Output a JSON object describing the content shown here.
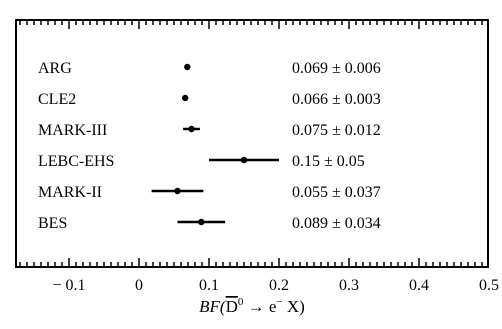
{
  "chart_data": {
    "type": "scatter",
    "title": "",
    "xlabel_main": "BF(",
    "xlabel_dbar": "D",
    "xlabel_dsup": "0",
    "xlabel_arrow": " → e",
    "xlabel_esup": "−",
    "xlabel_tail": " X)",
    "xlim": [
      -0.18,
      0.5
    ],
    "xticks": [
      -0.1,
      0,
      0.1,
      0.2,
      0.3,
      0.4,
      0.5
    ],
    "xtick_labels": [
      "− 0.1",
      "0",
      "0.1",
      "0.2",
      "0.3",
      "0.4",
      "0.5"
    ],
    "grid": false,
    "legend": "none",
    "measurements": [
      {
        "label": "ARG",
        "value": 0.069,
        "error": 0.006,
        "text": "0.069 ± 0.006"
      },
      {
        "label": "CLE2",
        "value": 0.066,
        "error": 0.003,
        "text": "0.066 ± 0.003"
      },
      {
        "label": "MARK-III",
        "value": 0.075,
        "error": 0.012,
        "text": "0.075 ± 0.012"
      },
      {
        "label": "LEBC-EHS",
        "value": 0.15,
        "error": 0.05,
        "text": "0.15 ± 0.05"
      },
      {
        "label": "MARK-II",
        "value": 0.055,
        "error": 0.037,
        "text": "0.055 ± 0.037"
      },
      {
        "label": "BES",
        "value": 0.089,
        "error": 0.034,
        "text": "0.089 ± 0.034"
      }
    ]
  }
}
